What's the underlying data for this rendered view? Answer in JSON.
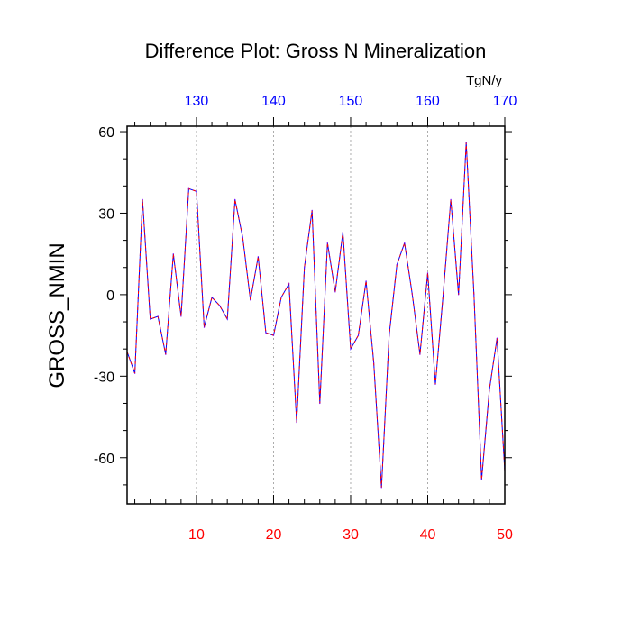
{
  "chart_data": {
    "type": "line",
    "title": "Difference Plot: Gross N Mineralization",
    "ylabel": "GROSS_NMIN",
    "units_label": "TgN/y",
    "xlim": [
      1,
      50
    ],
    "ylim": [
      -77,
      62
    ],
    "bottom_ticks": [
      "10",
      "20",
      "30",
      "40",
      "50"
    ],
    "top_ticks": [
      "130",
      "140",
      "150",
      "160",
      "170"
    ],
    "top_tick_x_positions": [
      10,
      20,
      30,
      40,
      50
    ],
    "y_ticks": [
      "60",
      "30",
      "0",
      "-30",
      "-60"
    ],
    "y_tick_values": [
      60,
      30,
      0,
      -30,
      -60
    ],
    "bottom_tick_color": "#ff0000",
    "top_tick_color": "#0000ff",
    "grid": "vertical dotted at major x ticks",
    "series": [
      {
        "color_primary": "#0000ff",
        "color_secondary": "#ff0000",
        "x": [
          1,
          2,
          3,
          4,
          5,
          6,
          7,
          8,
          9,
          10,
          11,
          12,
          13,
          14,
          15,
          16,
          17,
          18,
          19,
          20,
          21,
          22,
          23,
          24,
          25,
          26,
          27,
          28,
          29,
          30,
          31,
          32,
          33,
          34,
          35,
          36,
          37,
          38,
          39,
          40,
          41,
          42,
          43,
          44,
          45,
          46,
          47,
          48,
          49,
          50
        ],
        "values": [
          -21,
          -29,
          35,
          -9,
          -8,
          -22,
          15,
          -8,
          39,
          38,
          -12,
          -1,
          -4,
          -9,
          35,
          21,
          -2,
          14,
          -14,
          -15,
          -1,
          4,
          -47,
          10,
          31,
          -40,
          19,
          1,
          23,
          -20,
          -15,
          5,
          -25,
          -71,
          -15,
          11,
          19,
          0,
          -22,
          8,
          -33,
          0,
          35,
          0,
          56,
          0,
          -68,
          -35,
          -16,
          -65
        ]
      }
    ]
  }
}
